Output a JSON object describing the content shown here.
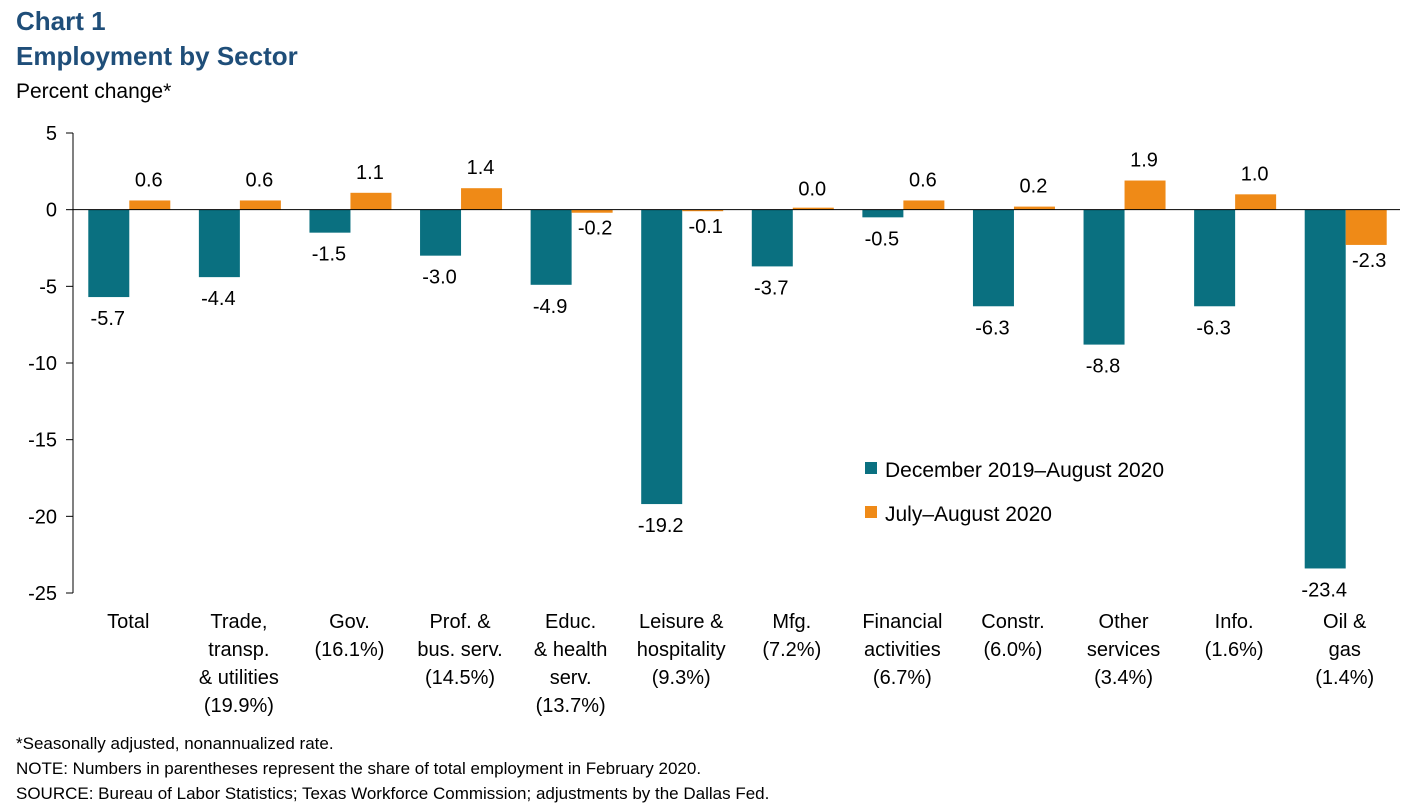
{
  "header": {
    "title_line1": "Chart 1",
    "title_line2": "Employment by Sector",
    "ylabel": "Percent change*"
  },
  "colors": {
    "series1": "#0a7080",
    "series2": "#ef8a17",
    "title": "#1f4e79"
  },
  "chart_data": {
    "type": "bar",
    "title": "Employment by Sector",
    "ylabel": "Percent change*",
    "ylim": [
      -25,
      5
    ],
    "yticks": [
      5,
      0,
      -5,
      -10,
      -15,
      -20,
      -25
    ],
    "grid": false,
    "legend_position": "center-right",
    "categories": [
      [
        "Total"
      ],
      [
        "Trade,",
        "transp.",
        "& utilities",
        "(19.9%)"
      ],
      [
        "Gov.",
        "(16.1%)"
      ],
      [
        "Prof. &",
        "bus. serv.",
        "(14.5%)"
      ],
      [
        "Educ.",
        "& health",
        "serv.",
        "(13.7%)"
      ],
      [
        "Leisure &",
        "hospitality",
        "(9.3%)"
      ],
      [
        "Mfg.",
        "(7.2%)"
      ],
      [
        "Financial",
        "activities",
        "(6.7%)"
      ],
      [
        "Constr.",
        "(6.0%)"
      ],
      [
        "Other",
        "services",
        "(3.4%)"
      ],
      [
        "Info.",
        "(1.6%)"
      ],
      [
        "Oil &",
        "gas",
        "(1.4%)"
      ]
    ],
    "series": [
      {
        "name": "December 2019–August 2020",
        "values": [
          -5.7,
          -4.4,
          -1.5,
          -3.0,
          -4.9,
          -19.2,
          -3.7,
          -0.5,
          -6.3,
          -8.8,
          -6.3,
          -23.4
        ],
        "labels": [
          "-5.7",
          "-4.4",
          "-1.5",
          "-3.0",
          "-4.9",
          "-19.2",
          "-3.7",
          "-0.5",
          "-6.3",
          "-8.8",
          "-6.3",
          "-23.4"
        ]
      },
      {
        "name": "July–August 2020",
        "values": [
          0.6,
          0.6,
          1.1,
          1.4,
          -0.2,
          -0.1,
          0.0,
          0.6,
          0.2,
          1.9,
          1.0,
          -2.3
        ],
        "labels": [
          "0.6",
          "0.6",
          "1.1",
          "1.4",
          "-0.2",
          "-0.1",
          "0.0",
          "0.6",
          "0.2",
          "1.9",
          "1.0",
          "-2.3"
        ]
      }
    ]
  },
  "notes": {
    "line1": "*Seasonally adjusted, nonannualized  rate.",
    "line2": "NOTE: Numbers in parentheses represent the share of total employment in February 2020.",
    "line3": "SOURCE:  Bureau of Labor Statistics; Texas Workforce Commission;  adjustments by the Dallas Fed."
  }
}
